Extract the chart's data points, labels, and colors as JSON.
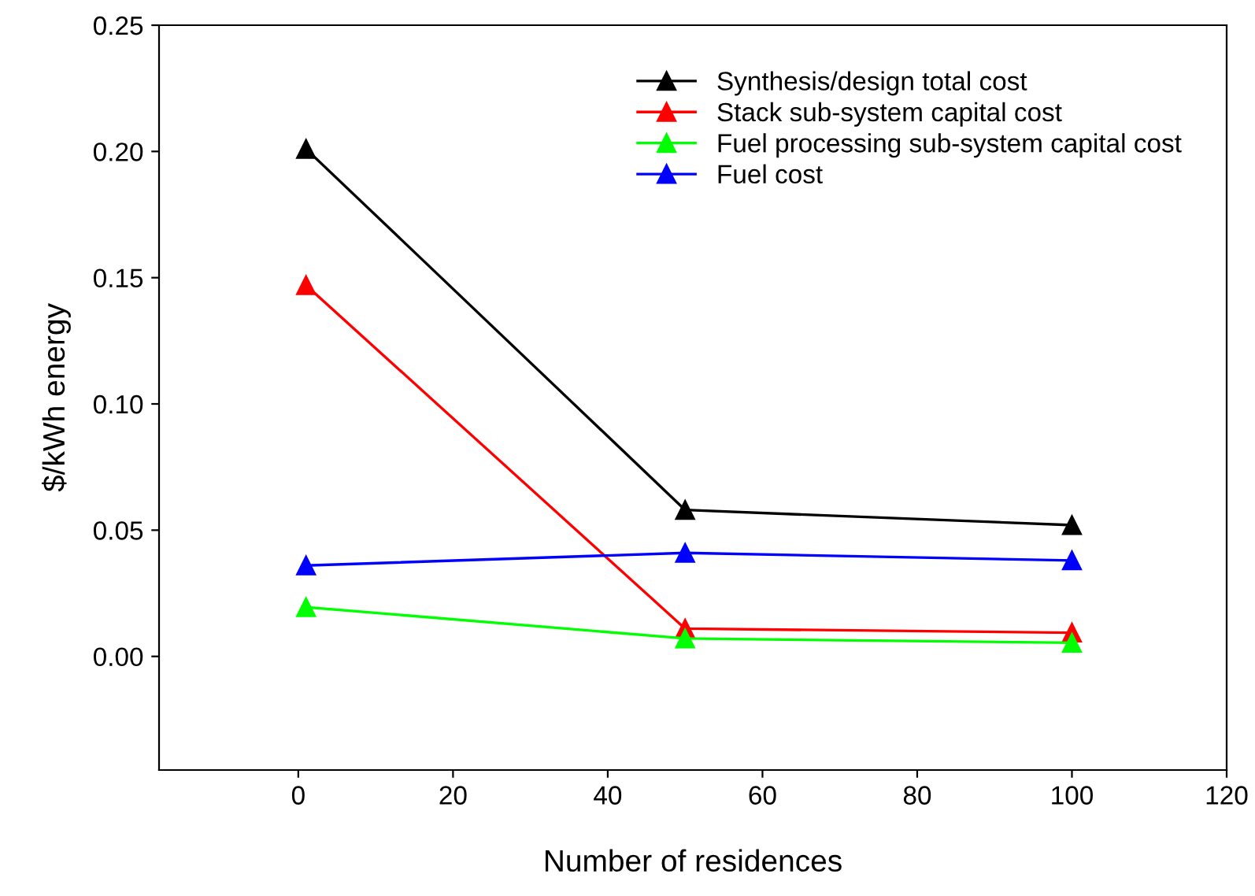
{
  "chart_data": {
    "type": "line",
    "xlabel": "Number of residences",
    "ylabel": "$/kWh energy",
    "x": [
      1,
      50,
      100
    ],
    "series": [
      {
        "name": "Synthesis/design total cost",
        "color": "#000000",
        "values": [
          0.201,
          0.058,
          0.052
        ]
      },
      {
        "name": "Stack sub-system capital cost",
        "color": "#ff0000",
        "values": [
          0.147,
          0.011,
          0.0094
        ]
      },
      {
        "name": "Fuel processing sub-system capital cost",
        "color": "#00ff00",
        "values": [
          0.0195,
          0.0071,
          0.0054
        ]
      },
      {
        "name": "Fuel cost",
        "color": "#0000ff",
        "values": [
          0.036,
          0.041,
          0.038
        ]
      }
    ],
    "xlim": [
      -18,
      120
    ],
    "xticks": [
      0,
      20,
      40,
      60,
      80,
      100,
      120
    ],
    "ylim": [
      -0.045,
      0.25
    ],
    "yticks": [
      {
        "value": 0,
        "label": "0.00"
      },
      {
        "value": 0.05,
        "label": "0.05"
      },
      {
        "value": 0.1,
        "label": "0.10"
      },
      {
        "value": 0.15,
        "label": "0.15"
      },
      {
        "value": 0.2,
        "label": "0.20"
      },
      {
        "value": 0.25,
        "label": "0.25"
      }
    ],
    "marker": "triangle",
    "line_style": "solid",
    "grid": false,
    "legend": "top right"
  }
}
